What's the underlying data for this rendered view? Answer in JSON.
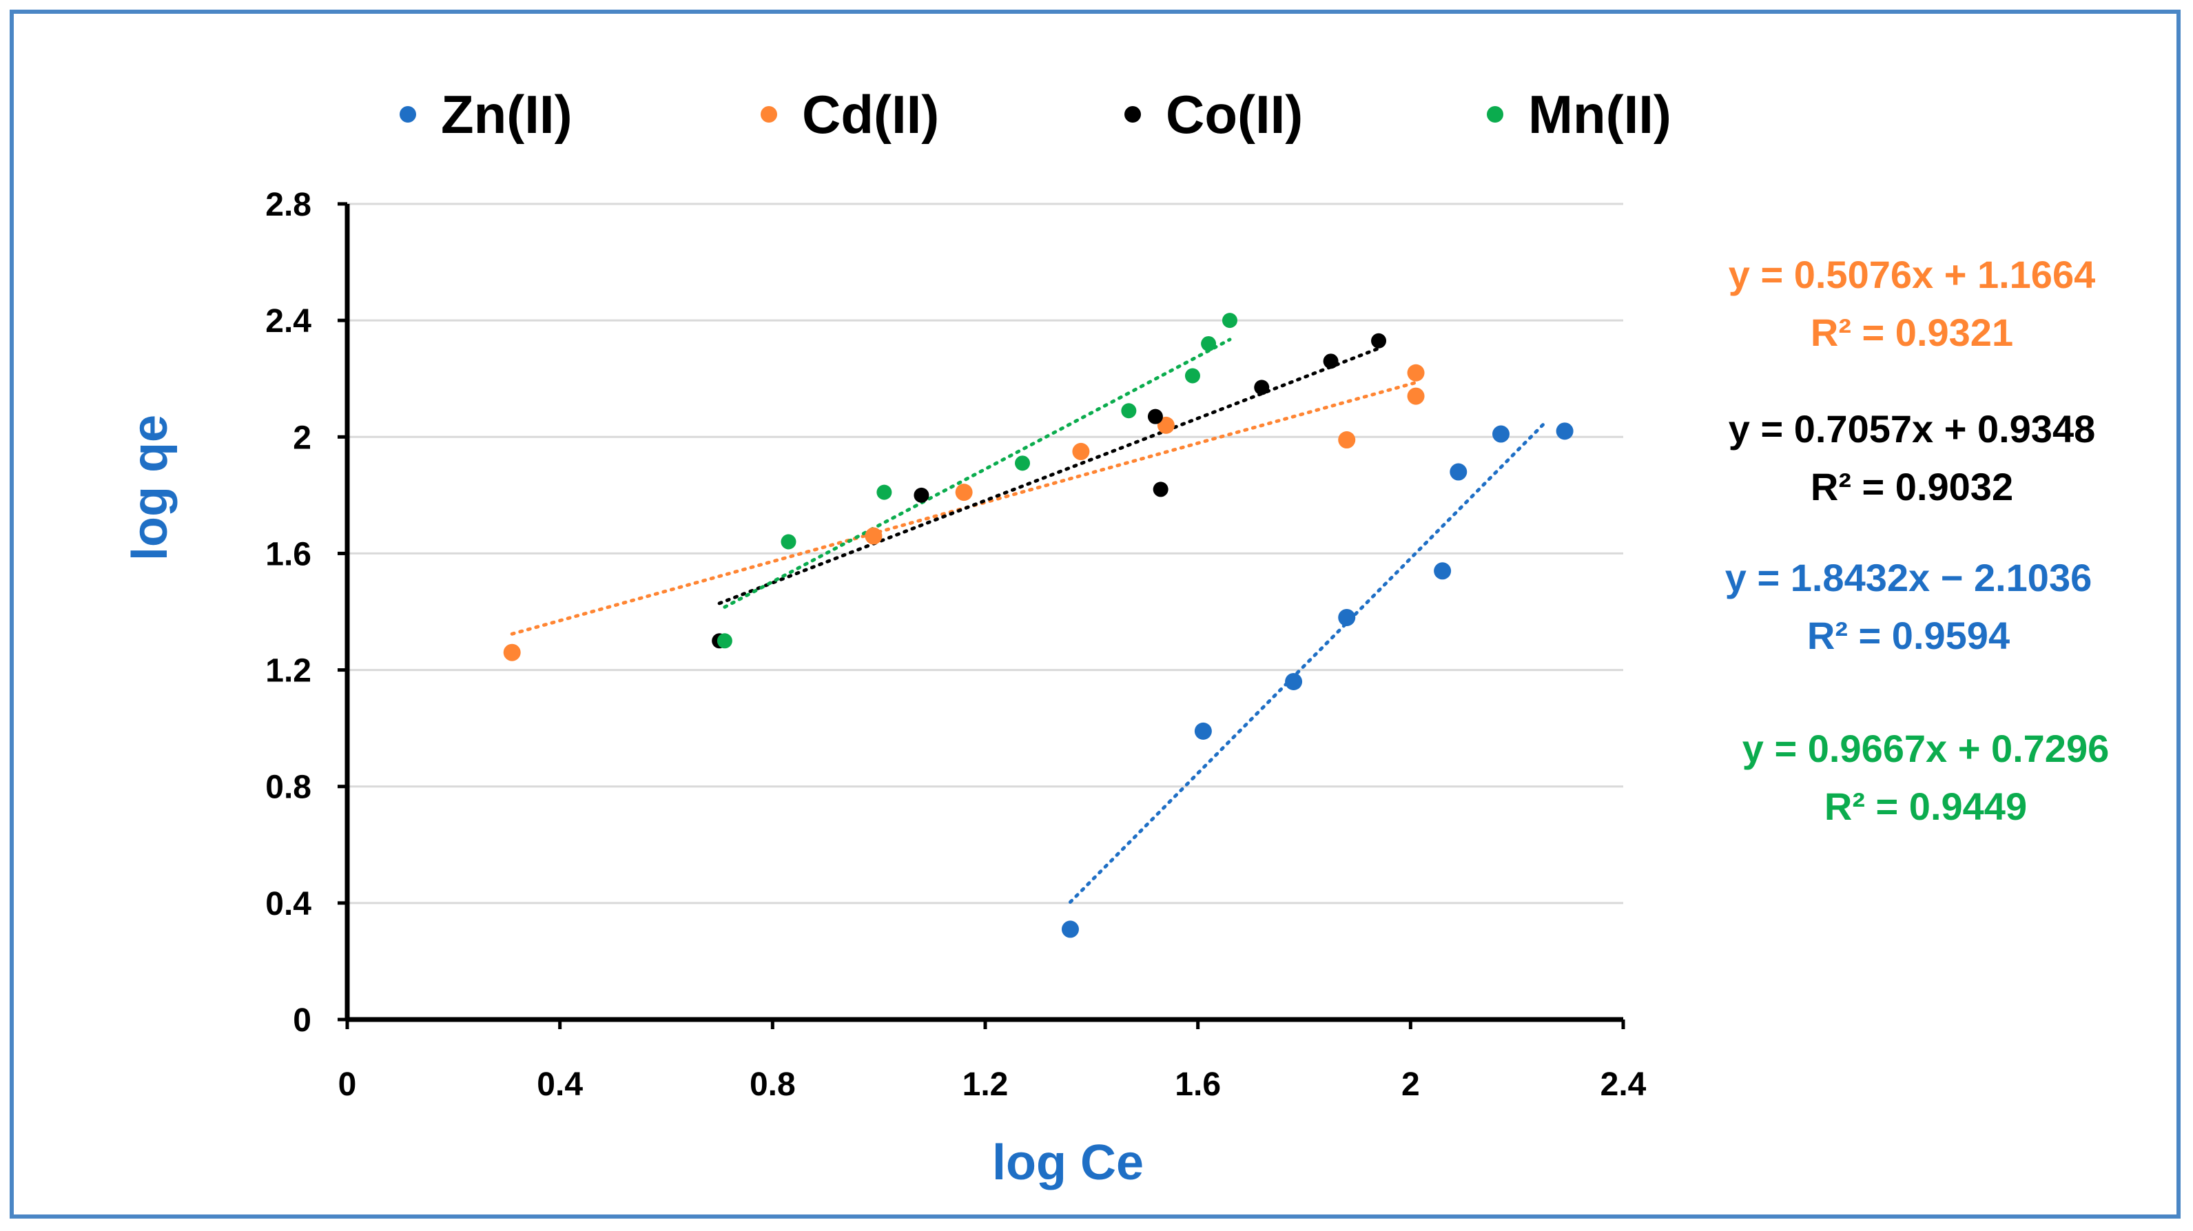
{
  "chart_data": {
    "type": "scatter",
    "title": "",
    "xlabel": "log Ce",
    "ylabel": "log qe",
    "xlim": [
      0,
      2.4
    ],
    "ylim": [
      0,
      2.8
    ],
    "x_ticks": [
      "0",
      "0.4",
      "0.8",
      "1.2",
      "1.6",
      "2",
      "2.4"
    ],
    "y_ticks": [
      "0",
      "0.4",
      "0.8",
      "1.2",
      "1.6",
      "2",
      "2.4",
      "2.8"
    ],
    "grid": "horizontal",
    "legend_position": "top",
    "series": [
      {
        "name": "Zn(II)",
        "color": "#1f6fc5",
        "points": [
          [
            1.36,
            0.31
          ],
          [
            1.61,
            0.99
          ],
          [
            1.78,
            1.16
          ],
          [
            1.88,
            1.38
          ],
          [
            2.06,
            1.54
          ],
          [
            2.09,
            1.88
          ],
          [
            2.17,
            2.01
          ],
          [
            2.29,
            2.02
          ]
        ],
        "trendline": {
          "slope": 1.8432,
          "intercept": -2.1036,
          "x_range": [
            1.36,
            2.25
          ]
        },
        "equation": "y = 1.8432x − 2.1036",
        "r2": "R² = 0.9594"
      },
      {
        "name": "Cd(II)",
        "color": "#ff8533",
        "points": [
          [
            0.31,
            1.26
          ],
          [
            0.99,
            1.66
          ],
          [
            1.16,
            1.81
          ],
          [
            1.38,
            1.95
          ],
          [
            1.54,
            2.04
          ],
          [
            1.88,
            1.99
          ],
          [
            2.01,
            2.14
          ],
          [
            2.01,
            2.22
          ]
        ],
        "trendline": {
          "slope": 0.5076,
          "intercept": 1.1664,
          "x_range": [
            0.31,
            2.01
          ]
        },
        "equation": "y = 0.5076x + 1.1664",
        "r2": "R² = 0.9321"
      },
      {
        "name": "Co(II)",
        "color": "#000000",
        "points": [
          [
            0.7,
            1.3
          ],
          [
            1.08,
            1.8
          ],
          [
            1.52,
            2.07
          ],
          [
            1.53,
            1.82
          ],
          [
            1.72,
            2.17
          ],
          [
            1.85,
            2.26
          ],
          [
            1.94,
            2.33
          ]
        ],
        "trendline": {
          "slope": 0.7057,
          "intercept": 0.9348,
          "x_range": [
            0.7,
            1.94
          ]
        },
        "equation": "y = 0.7057x + 0.9348",
        "r2": "R² = 0.9032"
      },
      {
        "name": "Mn(II)",
        "color": "#0bac4e",
        "points": [
          [
            0.71,
            1.3
          ],
          [
            0.83,
            1.64
          ],
          [
            1.01,
            1.81
          ],
          [
            1.27,
            1.91
          ],
          [
            1.47,
            2.09
          ],
          [
            1.59,
            2.21
          ],
          [
            1.62,
            2.32
          ],
          [
            1.66,
            2.4
          ]
        ],
        "trendline": {
          "slope": 0.9667,
          "intercept": 0.7296,
          "x_range": [
            0.71,
            1.66
          ]
        },
        "equation": "y = 0.9667x + 0.7296",
        "r2": "R² = 0.9449"
      }
    ]
  }
}
